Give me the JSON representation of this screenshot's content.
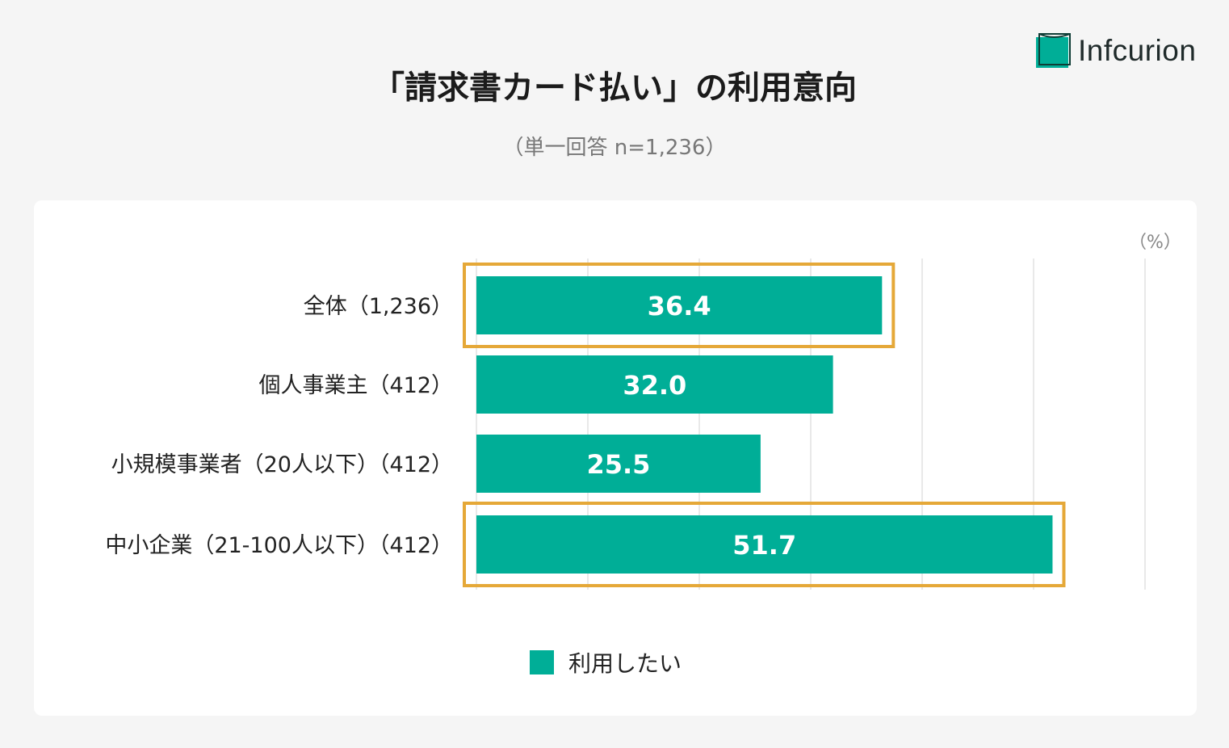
{
  "logo": {
    "text": "Infcurion"
  },
  "header": {
    "title": "「請求書カード払い」の利用意向",
    "subtitle": "（単一回答 n=1,236）"
  },
  "colors": {
    "bar": "#00ae97",
    "highlight": "#e5a838",
    "grid": "#e2e2e2",
    "background": "#f5f5f5",
    "card": "#ffffff"
  },
  "chart_data": {
    "type": "bar",
    "orientation": "horizontal",
    "unit_label": "（%）",
    "categories": [
      "全体（1,236）",
      "個人事業主（412）",
      "小規模事業者（20人以下）（412）",
      "中小企業（21-100人以下）（412）"
    ],
    "series": [
      {
        "name": "利用したい",
        "values": [
          36.4,
          32.0,
          25.5,
          51.7
        ],
        "labels": [
          "36.4",
          "32.0",
          "25.5",
          "51.7"
        ]
      }
    ],
    "highlighted_categories": [
      0,
      3
    ],
    "xlim": [
      0,
      60
    ],
    "x_gridlines": [
      0,
      10,
      20,
      30,
      40,
      50,
      60
    ],
    "grid": true,
    "legend": {
      "position": "bottom",
      "entries": [
        "利用したい"
      ]
    }
  }
}
